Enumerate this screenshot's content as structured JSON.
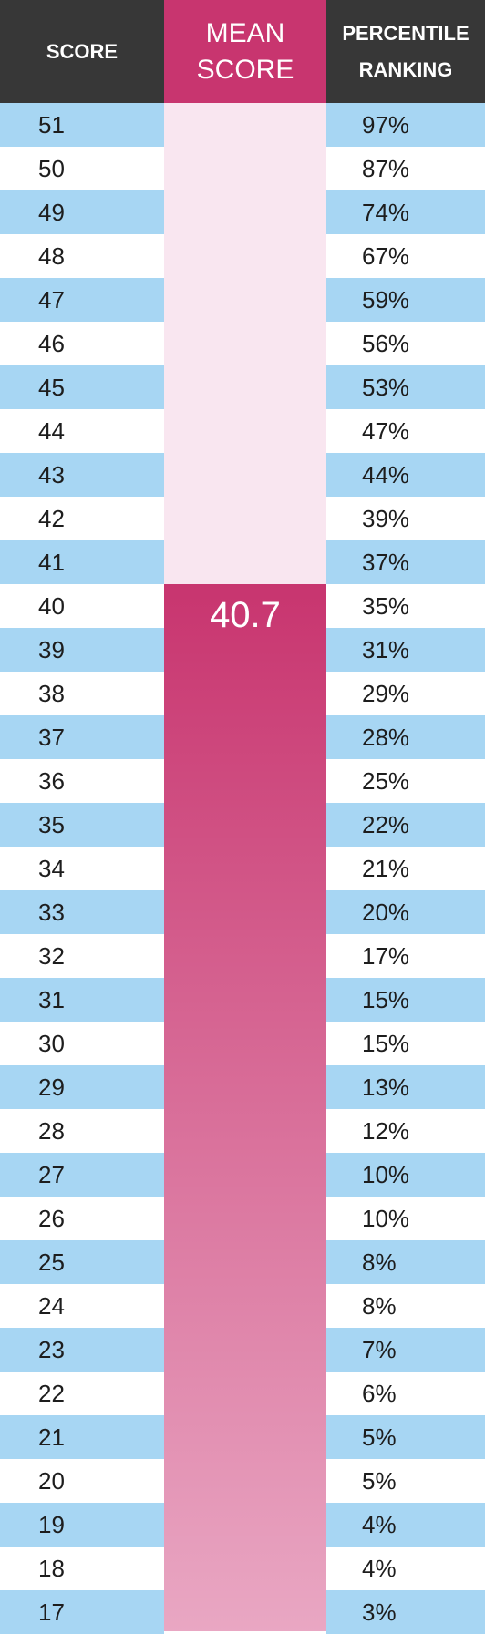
{
  "colors": {
    "header_bg": "#373737",
    "header_accent": "#c8356f",
    "band_blue": "#a7d6f3",
    "mean_track": "#f9e6f0",
    "mean_bar_top": "#c8356f",
    "mean_bar_bottom": "#e9a7c3"
  },
  "header": {
    "score": "SCORE",
    "mean_line1": "MEAN",
    "mean_line2": "SCORE",
    "percentile_line1": "PERCENTILE",
    "percentile_line2": "RANKING"
  },
  "mean": {
    "value": 40.7,
    "label": "40.7"
  },
  "chart_data": {
    "type": "table",
    "columns": [
      "SCORE",
      "MEAN SCORE",
      "PERCENTILE RANKING"
    ],
    "mean_score": 40.7,
    "rows": [
      {
        "score": "51",
        "percentile": "97%"
      },
      {
        "score": "50",
        "percentile": "87%"
      },
      {
        "score": "49",
        "percentile": "74%"
      },
      {
        "score": "48",
        "percentile": "67%"
      },
      {
        "score": "47",
        "percentile": "59%"
      },
      {
        "score": "46",
        "percentile": "56%"
      },
      {
        "score": "45",
        "percentile": "53%"
      },
      {
        "score": "44",
        "percentile": "47%"
      },
      {
        "score": "43",
        "percentile": "44%"
      },
      {
        "score": "42",
        "percentile": "39%"
      },
      {
        "score": "41",
        "percentile": "37%"
      },
      {
        "score": "40",
        "percentile": "35%"
      },
      {
        "score": "39",
        "percentile": "31%"
      },
      {
        "score": "38",
        "percentile": "29%"
      },
      {
        "score": "37",
        "percentile": "28%"
      },
      {
        "score": "36",
        "percentile": "25%"
      },
      {
        "score": "35",
        "percentile": "22%"
      },
      {
        "score": "34",
        "percentile": "21%"
      },
      {
        "score": "33",
        "percentile": "20%"
      },
      {
        "score": "32",
        "percentile": "17%"
      },
      {
        "score": "31",
        "percentile": "15%"
      },
      {
        "score": "30",
        "percentile": "15%"
      },
      {
        "score": "29",
        "percentile": "13%"
      },
      {
        "score": "28",
        "percentile": "12%"
      },
      {
        "score": "27",
        "percentile": "10%"
      },
      {
        "score": "26",
        "percentile": "10%"
      },
      {
        "score": "25",
        "percentile": "8%"
      },
      {
        "score": "24",
        "percentile": "8%"
      },
      {
        "score": "23",
        "percentile": "7%"
      },
      {
        "score": "22",
        "percentile": "6%"
      },
      {
        "score": "21",
        "percentile": "5%"
      },
      {
        "score": "20",
        "percentile": "5%"
      },
      {
        "score": "19",
        "percentile": "4%"
      },
      {
        "score": "18",
        "percentile": "4%"
      },
      {
        "score": "17",
        "percentile": "3%"
      }
    ]
  }
}
